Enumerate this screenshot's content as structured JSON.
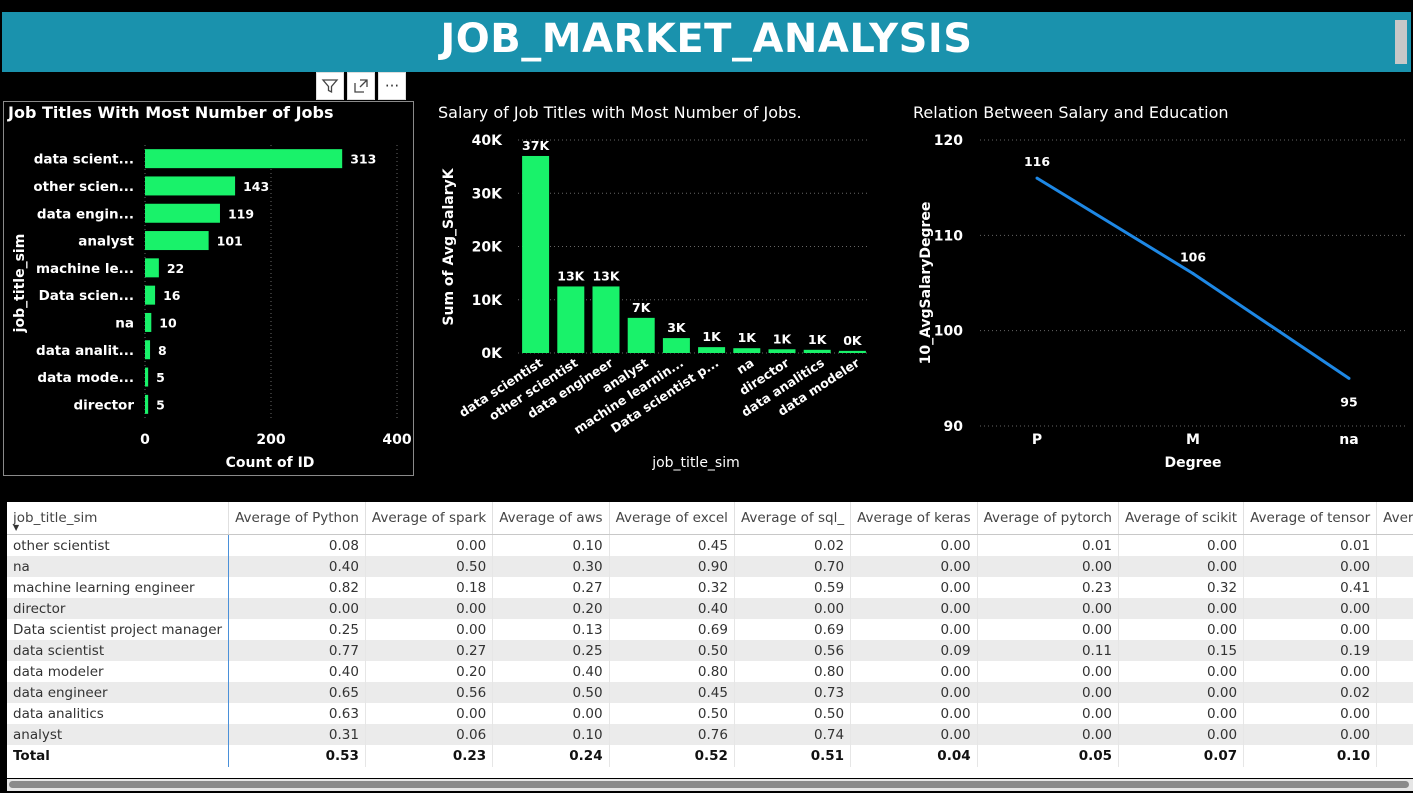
{
  "header": {
    "title": "JOB_MARKET_ANALYSIS"
  },
  "toolbar": {
    "filter_icon": "filter-icon",
    "focus_icon": "focus-mode-icon",
    "more_icon": "more-options-icon",
    "more_label": "···"
  },
  "colors": {
    "accent": "#1a92ad",
    "bar": "#19f26a",
    "line": "#1e88e5"
  },
  "chart_data": [
    {
      "type": "bar",
      "orientation": "horizontal",
      "title": "Job Titles With Most Number of Jobs",
      "xlabel": "Count of ID",
      "ylabel": "job_title_sim",
      "categories": [
        "data scient...",
        "other scien...",
        "data engin...",
        "analyst",
        "machine le...",
        "Data scien...",
        "na",
        "data analit...",
        "data mode...",
        "director"
      ],
      "values": [
        313,
        143,
        119,
        101,
        22,
        16,
        10,
        8,
        5,
        5
      ],
      "data_labels": [
        "313",
        "143",
        "119",
        "101",
        "22",
        "16",
        "10",
        "8",
        "5",
        "5"
      ],
      "xlim": [
        0,
        400
      ],
      "xticks": [
        0,
        200,
        400
      ],
      "xtick_labels": [
        "0",
        "200",
        "400"
      ]
    },
    {
      "type": "bar",
      "title": "Salary of Job Titles with Most Number of Jobs.",
      "xlabel": "job_title_sim",
      "ylabel": "Sum of Avg_SalaryK",
      "categories": [
        "data scientist",
        "other scientist",
        "data engineer",
        "analyst",
        "machine learnin...",
        "Data scientist p...",
        "na",
        "director",
        "data analitics",
        "data modeler"
      ],
      "values": [
        37000,
        12500,
        12500,
        6600,
        2800,
        1100,
        900,
        700,
        600,
        400
      ],
      "data_labels": [
        "37K",
        "13K",
        "13K",
        "7K",
        "3K",
        "1K",
        "1K",
        "1K",
        "1K",
        "0K"
      ],
      "ylim": [
        0,
        40000
      ],
      "yticks": [
        0,
        10000,
        20000,
        30000,
        40000
      ],
      "ytick_labels": [
        "0K",
        "10K",
        "20K",
        "30K",
        "40K"
      ]
    },
    {
      "type": "line",
      "title": "Relation Between Salary and Education",
      "xlabel": "Degree",
      "ylabel": "10_AvgSalaryDegree",
      "categories": [
        "P",
        "M",
        "na"
      ],
      "values": [
        116,
        106,
        95
      ],
      "data_labels": [
        "116",
        "106",
        "95"
      ],
      "ylim": [
        90,
        120
      ],
      "yticks": [
        90,
        100,
        110,
        120
      ],
      "ytick_labels": [
        "90",
        "100",
        "110",
        "120"
      ]
    }
  ],
  "table": {
    "columns": [
      "job_title_sim",
      "Average of Python",
      "Average of spark",
      "Average of aws",
      "Average of excel",
      "Average of sql_",
      "Average of keras",
      "Average of pytorch",
      "Average of scikit",
      "Average of tensor",
      "Average of ha"
    ],
    "rows": [
      [
        "other scientist",
        "0.08",
        "0.00",
        "0.10",
        "0.45",
        "0.02",
        "0.00",
        "0.01",
        "0.00",
        "0.01",
        ""
      ],
      [
        "na",
        "0.40",
        "0.50",
        "0.30",
        "0.90",
        "0.70",
        "0.00",
        "0.00",
        "0.00",
        "0.00",
        ""
      ],
      [
        "machine learning engineer",
        "0.82",
        "0.18",
        "0.27",
        "0.32",
        "0.59",
        "0.00",
        "0.23",
        "0.32",
        "0.41",
        ""
      ],
      [
        "director",
        "0.00",
        "0.00",
        "0.20",
        "0.40",
        "0.00",
        "0.00",
        "0.00",
        "0.00",
        "0.00",
        ""
      ],
      [
        "Data scientist project manager",
        "0.25",
        "0.00",
        "0.13",
        "0.69",
        "0.69",
        "0.00",
        "0.00",
        "0.00",
        "0.00",
        ""
      ],
      [
        "data scientist",
        "0.77",
        "0.27",
        "0.25",
        "0.50",
        "0.56",
        "0.09",
        "0.11",
        "0.15",
        "0.19",
        ""
      ],
      [
        "data modeler",
        "0.40",
        "0.20",
        "0.40",
        "0.80",
        "0.80",
        "0.00",
        "0.00",
        "0.00",
        "0.00",
        ""
      ],
      [
        "data engineer",
        "0.65",
        "0.56",
        "0.50",
        "0.45",
        "0.73",
        "0.00",
        "0.00",
        "0.00",
        "0.02",
        ""
      ],
      [
        "data analitics",
        "0.63",
        "0.00",
        "0.00",
        "0.50",
        "0.50",
        "0.00",
        "0.00",
        "0.00",
        "0.00",
        ""
      ],
      [
        "analyst",
        "0.31",
        "0.06",
        "0.10",
        "0.76",
        "0.74",
        "0.00",
        "0.00",
        "0.00",
        "0.00",
        ""
      ]
    ],
    "total": [
      "Total",
      "0.53",
      "0.23",
      "0.24",
      "0.52",
      "0.51",
      "0.04",
      "0.05",
      "0.07",
      "0.10",
      ""
    ]
  }
}
